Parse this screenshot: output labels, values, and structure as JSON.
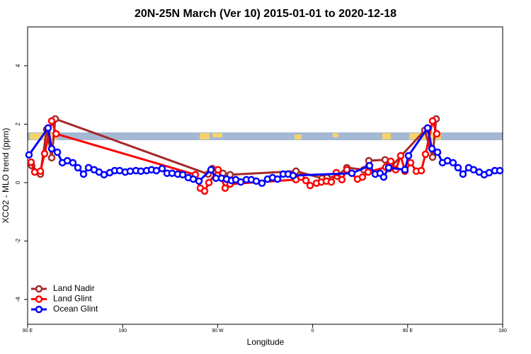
{
  "chart_data": {
    "type": "line",
    "title": "20N-25N March (Ver 10)   2015-01-01 to 2020-12-18",
    "x_label": "Longitude",
    "y_label": "XCO2 - MLO trend (ppm)",
    "xlim": [
      90,
      540
    ],
    "ylim": [
      -4.85,
      5.33
    ],
    "xticks": [
      {
        "value": 90,
        "label": "90 E"
      },
      180,
      {
        "value": 270,
        "label": "90 W"
      },
      {
        "value": 360,
        "label": "0"
      },
      {
        "value": 450,
        "label": "90 E"
      },
      {
        "value": 540,
        "label": "180"
      }
    ],
    "yticks": [
      -4,
      -2,
      0,
      2,
      4
    ],
    "legend": "bottom-left",
    "series": [
      {
        "name": "Land Nadir",
        "color": "#a52a2a",
        "x": [
          93.9,
          102.1,
          108.1,
          112.8,
          116.2,
          261,
          265,
          275.1,
          281.8,
          344.2,
          368.9,
          373.6,
          383.1,
          392.4,
          408.5,
          413.2,
          428.6,
          432.7,
          466.2,
          473.6,
          477
        ],
        "values": [
          0.58,
          0.29,
          1.82,
          0.85,
          2.18,
          0.29,
          0.48,
          0.32,
          0.27,
          0.39,
          0.15,
          0.17,
          0.22,
          0.51,
          0.44,
          0.75,
          0.78,
          0.48,
          1.79,
          0.87,
          2.18
        ]
      },
      {
        "name": "Land Glint",
        "color": "#ff0000",
        "x": [
          93.3,
          96.7,
          102.1,
          106.1,
          112.8,
          117,
          248.9,
          253.6,
          257.7,
          261.7,
          270.4,
          277.1,
          281.8,
          344.2,
          348.9,
          353.6,
          357.6,
          363.6,
          368.3,
          373,
          377.7,
          382.4,
          387.7,
          392.4,
          402.5,
          407.2,
          412.6,
          429.3,
          434,
          438.7,
          443.4,
          447.4,
          452.8,
          458.2,
          462.9,
          466.9,
          473.6,
          477.6
        ],
        "values": [
          0.7,
          0.36,
          0.39,
          0.99,
          2.11,
          1.67,
          0.27,
          -0.19,
          -0.29,
          0,
          0.44,
          -0.19,
          -0.05,
          0.1,
          0.19,
          0.07,
          -0.1,
          -0.02,
          0.02,
          0.05,
          0.02,
          0.34,
          0.1,
          0.44,
          0.12,
          0.19,
          0.36,
          0.53,
          0.73,
          0.44,
          0.92,
          0.39,
          0.68,
          0.39,
          0.41,
          0.97,
          2.11,
          1.67
        ]
      },
      {
        "name": "Ocean Glint",
        "color": "#0000ff",
        "x": [
          91.3,
          109.4,
          112.8,
          118.2,
          122.9,
          127.6,
          132.9,
          137.6,
          143,
          147.7,
          153,
          157.7,
          162.4,
          167.8,
          172.5,
          177.2,
          182.5,
          187.2,
          192.6,
          197.3,
          202.7,
          207.4,
          212,
          217.4,
          222.1,
          226.8,
          232.2,
          236.9,
          242.2,
          246.9,
          252.3,
          263.7,
          268.4,
          273.7,
          278.4,
          283.1,
          287.2,
          291.9,
          297.2,
          301.9,
          306.6,
          312,
          317.3,
          322,
          326.7,
          332.1,
          336.8,
          341.5,
          397.1,
          413.9,
          419.3,
          423.9,
          427.3,
          432,
          447.4,
          450.8,
          468.9,
          473,
          478.3,
          483,
          487.7,
          493,
          497.7,
          502.4,
          507.8,
          512.5,
          517.8,
          522.5,
          527.2,
          532.6,
          537.3
        ],
        "values": [
          0.95,
          1.87,
          1.16,
          1.04,
          0.68,
          0.75,
          0.68,
          0.51,
          0.29,
          0.51,
          0.44,
          0.36,
          0.27,
          0.34,
          0.41,
          0.41,
          0.36,
          0.39,
          0.41,
          0.39,
          0.41,
          0.44,
          0.41,
          0.48,
          0.32,
          0.32,
          0.29,
          0.27,
          0.17,
          0.12,
          0.05,
          0.44,
          0.15,
          0.15,
          0.12,
          0.07,
          0.1,
          0.02,
          0.1,
          0.1,
          0.05,
          -0.02,
          0.12,
          0.17,
          0.12,
          0.29,
          0.29,
          0.24,
          0.32,
          0.58,
          0.29,
          0.32,
          0.19,
          0.51,
          0.44,
          0.92,
          1.87,
          1.16,
          1.04,
          0.68,
          0.75,
          0.68,
          0.51,
          0.29,
          0.51,
          0.44,
          0.36,
          0.27,
          0.34,
          0.41,
          0.41
        ]
      }
    ]
  }
}
